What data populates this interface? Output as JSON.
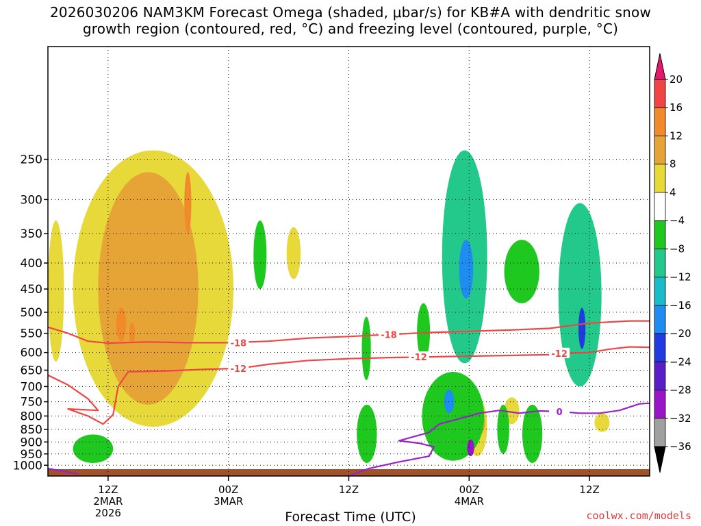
{
  "title_line1": "2026030206 NAM3KM Forecast Omega (shaded, μbar/s) for KB#A with dendritic snow",
  "title_line2": "growth region (contoured, red, °C) and freezing level (contoured, purple, °C)",
  "credit": "coolwx.com/models",
  "colors": {
    "dendritic": "#f04545",
    "freezing": "#9a20c8",
    "ground": "#a0522d"
  },
  "chart_data": {
    "type": "heatmap",
    "title": "2026030206 NAM3KM Forecast Omega (shaded, μbar/s) for KB#A with dendritic snow growth region (contoured, red, °C) and freezing level (contoured, purple, °C)",
    "xlabel": "Forecast Time (UTC)",
    "ylabel": "",
    "x_range_hours": [
      6,
      66
    ],
    "y_range_hPa": [
      1050,
      150
    ],
    "y_scale": "log-pressure",
    "grid": true,
    "x_ticks": [
      {
        "hour": 12,
        "lines": [
          "12Z",
          "2MAR",
          "2026"
        ]
      },
      {
        "hour": 24,
        "lines": [
          "00Z",
          "3MAR"
        ]
      },
      {
        "hour": 36,
        "lines": [
          "12Z"
        ]
      },
      {
        "hour": 48,
        "lines": [
          "00Z",
          "4MAR"
        ]
      },
      {
        "hour": 60,
        "lines": [
          "12Z"
        ]
      }
    ],
    "y_ticks": [
      250,
      300,
      350,
      400,
      450,
      500,
      550,
      600,
      650,
      700,
      750,
      800,
      850,
      900,
      950,
      1000
    ],
    "colorbar": {
      "labels": [
        "20",
        "16",
        "12",
        "8",
        "4",
        "−4",
        "−8",
        "−12",
        "−16",
        "−20",
        "−24",
        "−28",
        "−32",
        "−36"
      ],
      "bins": [
        {
          "min": 20,
          "color": "#e8186e"
        },
        {
          "min": 16,
          "max": 20,
          "color": "#f04545"
        },
        {
          "min": 12,
          "max": 16,
          "color": "#f08a2a"
        },
        {
          "min": 8,
          "max": 12,
          "color": "#e6a437"
        },
        {
          "min": 4,
          "max": 8,
          "color": "#e8d93a"
        },
        {
          "min": -4,
          "max": 4,
          "color": "#ffffff"
        },
        {
          "min": -8,
          "max": -4,
          "color": "#1ec81e"
        },
        {
          "min": -12,
          "max": -8,
          "color": "#22c98a"
        },
        {
          "min": -16,
          "max": -12,
          "color": "#19bcc8"
        },
        {
          "min": -20,
          "max": -16,
          "color": "#1e8cf0"
        },
        {
          "min": -24,
          "max": -20,
          "color": "#1e3ce0"
        },
        {
          "min": -28,
          "max": -24,
          "color": "#5a1ec8"
        },
        {
          "min": -32,
          "max": -28,
          "color": "#9a14c8"
        },
        {
          "min": -36,
          "max": -32,
          "color": "#a0a0a0"
        },
        {
          "max": -36,
          "color": "#000000"
        }
      ]
    },
    "contours": [
      {
        "label": "-18",
        "color": "#f04545",
        "points": [
          [
            6,
            535
          ],
          [
            8,
            550
          ],
          [
            10,
            570
          ],
          [
            12,
            575
          ],
          [
            16,
            572
          ],
          [
            20,
            574
          ],
          [
            24,
            574
          ],
          [
            28,
            570
          ],
          [
            32,
            562
          ],
          [
            36,
            558
          ],
          [
            40,
            553
          ],
          [
            44,
            548
          ],
          [
            48,
            545
          ],
          [
            52,
            542
          ],
          [
            56,
            538
          ],
          [
            60,
            525
          ],
          [
            64,
            520
          ],
          [
            66,
            520
          ]
        ],
        "labels_at": [
          [
            25,
            574
          ],
          [
            40,
            553
          ]
        ]
      },
      {
        "label": "-12",
        "color": "#f04545",
        "points": [
          [
            6,
            665
          ],
          [
            8,
            695
          ],
          [
            10,
            740
          ],
          [
            11,
            780
          ],
          [
            8,
            775
          ],
          [
            10,
            800
          ],
          [
            11.5,
            830
          ],
          [
            12.5,
            795
          ],
          [
            13,
            700
          ],
          [
            14,
            655
          ],
          [
            18,
            652
          ],
          [
            22,
            647
          ],
          [
            25,
            645
          ],
          [
            28,
            633
          ],
          [
            32,
            622
          ],
          [
            36,
            617
          ],
          [
            40,
            614
          ],
          [
            44,
            612
          ],
          [
            48,
            610
          ],
          [
            52,
            608
          ],
          [
            56,
            606
          ],
          [
            58,
            602
          ],
          [
            60,
            600
          ],
          [
            62,
            591
          ],
          [
            64,
            585
          ],
          [
            66,
            586
          ]
        ],
        "labels_at": [
          [
            25,
            645
          ],
          [
            43,
            612
          ],
          [
            57,
            602
          ]
        ]
      },
      {
        "label": "0",
        "color": "#9a20c8",
        "points": [
          [
            36,
            1050
          ],
          [
            38,
            1015
          ],
          [
            41,
            985
          ],
          [
            44,
            960
          ],
          [
            44.5,
            920
          ],
          [
            43,
            905
          ],
          [
            41,
            895
          ],
          [
            44,
            862
          ],
          [
            45,
            830
          ],
          [
            48,
            800
          ],
          [
            49,
            790
          ],
          [
            51,
            780
          ],
          [
            53,
            790
          ],
          [
            55,
            782
          ],
          [
            57,
            784
          ],
          [
            59,
            790
          ],
          [
            61,
            790
          ],
          [
            63,
            780
          ],
          [
            65,
            757
          ],
          [
            66,
            755
          ]
        ],
        "labels_at": [
          [
            57,
            784
          ]
        ]
      },
      {
        "label": "",
        "color": "#9a20c8",
        "points": [
          [
            6,
            1015
          ],
          [
            9,
            1040
          ]
        ],
        "labels_at": []
      }
    ],
    "features": [
      {
        "type": "ascent",
        "label": "4",
        "x": [
          6,
          7.6
        ],
        "p": [
          330,
          625
        ]
      },
      {
        "type": "ascent",
        "label": "4",
        "x": [
          8.5,
          24.5
        ],
        "p": [
          240,
          840
        ]
      },
      {
        "type": "ascent",
        "label": "8",
        "x": [
          11,
          21
        ],
        "p": [
          265,
          760
        ]
      },
      {
        "type": "ascent",
        "label": "12",
        "x": [
          12.8,
          13.8
        ],
        "p": [
          490,
          570
        ]
      },
      {
        "type": "ascent",
        "label": "12",
        "x": [
          14.1,
          14.7
        ],
        "p": [
          525,
          575
        ]
      },
      {
        "type": "ascent",
        "label": "12",
        "x": [
          19.6,
          20.3
        ],
        "p": [
          265,
          350
        ]
      },
      {
        "type": "ascent",
        "label": "4",
        "x": [
          29.8,
          31.2
        ],
        "p": [
          340,
          430
        ]
      },
      {
        "type": "ascent",
        "label": "4",
        "x": [
          47.8,
          49.8
        ],
        "p": [
          735,
          960
        ]
      },
      {
        "type": "ascent",
        "label": "8",
        "x": [
          48.5,
          49.6
        ],
        "p": [
          780,
          870
        ]
      },
      {
        "type": "ascent",
        "label": "4",
        "x": [
          51.5,
          53
        ],
        "p": [
          735,
          830
        ]
      },
      {
        "type": "ascent",
        "label": "4",
        "x": [
          60.5,
          62
        ],
        "p": [
          790,
          860
        ]
      },
      {
        "type": "descent",
        "label": "-4",
        "x": [
          26.5,
          27.8
        ],
        "p": [
          330,
          450
        ]
      },
      {
        "type": "descent",
        "label": "-4",
        "x": [
          37.3,
          38.2
        ],
        "p": [
          510,
          680
        ]
      },
      {
        "type": "descent",
        "label": "-4",
        "x": [
          42.8,
          44.1
        ],
        "p": [
          480,
          620
        ]
      },
      {
        "type": "descent",
        "label": "-8",
        "x": [
          45.3,
          49.8
        ],
        "p": [
          240,
          630
        ]
      },
      {
        "type": "descent",
        "label": "-16",
        "x": [
          47,
          48.4
        ],
        "p": [
          360,
          470
        ]
      },
      {
        "type": "descent",
        "label": "-4",
        "x": [
          51.5,
          55
        ],
        "p": [
          360,
          480
        ]
      },
      {
        "type": "descent",
        "label": "-8",
        "x": [
          56.9,
          61.2
        ],
        "p": [
          305,
          700
        ]
      },
      {
        "type": "descent",
        "label": "-20",
        "x": [
          58.9,
          59.6
        ],
        "p": [
          490,
          590
        ]
      },
      {
        "type": "descent",
        "label": "-4",
        "x": [
          43.3,
          49.5
        ],
        "p": [
          655,
          980
        ]
      },
      {
        "type": "descent",
        "label": "-16",
        "x": [
          45.5,
          46.5
        ],
        "p": [
          710,
          790
        ]
      },
      {
        "type": "descent",
        "label": "-28",
        "x": [
          47.8,
          48.5
        ],
        "p": [
          890,
          960
        ]
      },
      {
        "type": "descent",
        "label": "-4",
        "x": [
          36.8,
          38.8
        ],
        "p": [
          760,
          990
        ]
      },
      {
        "type": "descent",
        "label": "-4",
        "x": [
          50.8,
          52
        ],
        "p": [
          760,
          950
        ]
      },
      {
        "type": "descent",
        "label": "-4",
        "x": [
          53.3,
          55.3
        ],
        "p": [
          760,
          990
        ]
      },
      {
        "type": "descent",
        "label": "-4",
        "x": [
          8.5,
          12.5
        ],
        "p": [
          870,
          990
        ]
      }
    ]
  }
}
